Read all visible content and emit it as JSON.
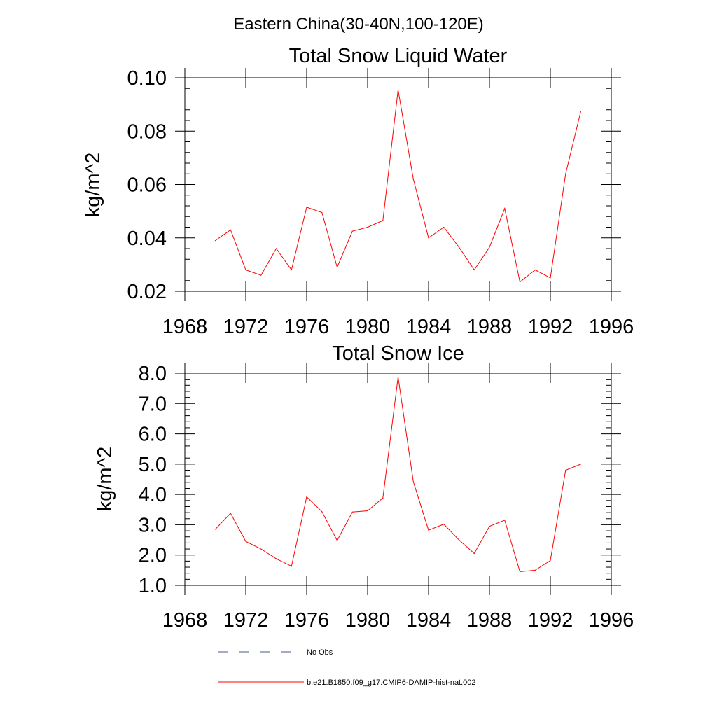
{
  "figure": {
    "suptitle": "Eastern China(30-40N,100-120E)"
  },
  "chart_data": [
    {
      "type": "line",
      "title": "Total Snow Liquid Water",
      "xlabel": "",
      "ylabel": "kg/m^2",
      "xlim": [
        1968,
        1996
      ],
      "ylim": [
        0.02,
        0.1
      ],
      "xticks": [
        "1968",
        "1972",
        "1976",
        "1980",
        "1984",
        "1988",
        "1992",
        "1996"
      ],
      "yticks": [
        "0.02",
        "0.04",
        "0.06",
        "0.08",
        "0.10"
      ],
      "x": [
        1970,
        1971,
        1972,
        1973,
        1974,
        1975,
        1976,
        1977,
        1978,
        1979,
        1980,
        1981,
        1982,
        1983,
        1984,
        1985,
        1986,
        1987,
        1988,
        1989,
        1990,
        1991,
        1992,
        1993,
        1994
      ],
      "series": [
        {
          "name": "b.e21.B1850.f09_g17.CMIP6-DAMIP-hist-nat.002",
          "color": "#ff0000",
          "values": [
            0.039,
            0.043,
            0.028,
            0.026,
            0.036,
            0.028,
            0.0515,
            0.0495,
            0.029,
            0.0425,
            0.044,
            0.0465,
            0.0955,
            0.062,
            0.04,
            0.044,
            0.0365,
            0.028,
            0.0365,
            0.051,
            0.0235,
            0.028,
            0.025,
            0.064,
            0.0875
          ]
        }
      ],
      "grid": false
    },
    {
      "type": "line",
      "title": "Total Snow Ice",
      "xlabel": "",
      "ylabel": "kg/m^2",
      "xlim": [
        1968,
        1996
      ],
      "ylim": [
        1.0,
        8.0
      ],
      "xticks": [
        "1968",
        "1972",
        "1976",
        "1980",
        "1984",
        "1988",
        "1992",
        "1996"
      ],
      "yticks": [
        "1.0",
        "2.0",
        "3.0",
        "4.0",
        "5.0",
        "6.0",
        "7.0",
        "8.0"
      ],
      "x": [
        1970,
        1971,
        1972,
        1973,
        1974,
        1975,
        1976,
        1977,
        1978,
        1979,
        1980,
        1981,
        1982,
        1983,
        1984,
        1985,
        1986,
        1987,
        1988,
        1989,
        1990,
        1991,
        1992,
        1993,
        1994
      ],
      "series": [
        {
          "name": "b.e21.B1850.f09_g17.CMIP6-DAMIP-hist-nat.002",
          "color": "#ff0000",
          "values": [
            2.85,
            3.38,
            2.45,
            2.2,
            1.88,
            1.63,
            3.92,
            3.43,
            2.48,
            3.42,
            3.46,
            3.88,
            7.88,
            4.42,
            2.82,
            3.02,
            2.5,
            2.05,
            2.95,
            3.15,
            1.45,
            1.5,
            1.82,
            4.8,
            5.0
          ]
        }
      ],
      "grid": false
    }
  ],
  "legend": {
    "items": [
      {
        "label": "No Obs",
        "color": "#4a5a8a",
        "style": "dashed"
      },
      {
        "label": "b.e21.B1850.f09_g17.CMIP6-DAMIP-hist-nat.002",
        "color": "#ff0000",
        "style": "solid"
      }
    ]
  }
}
